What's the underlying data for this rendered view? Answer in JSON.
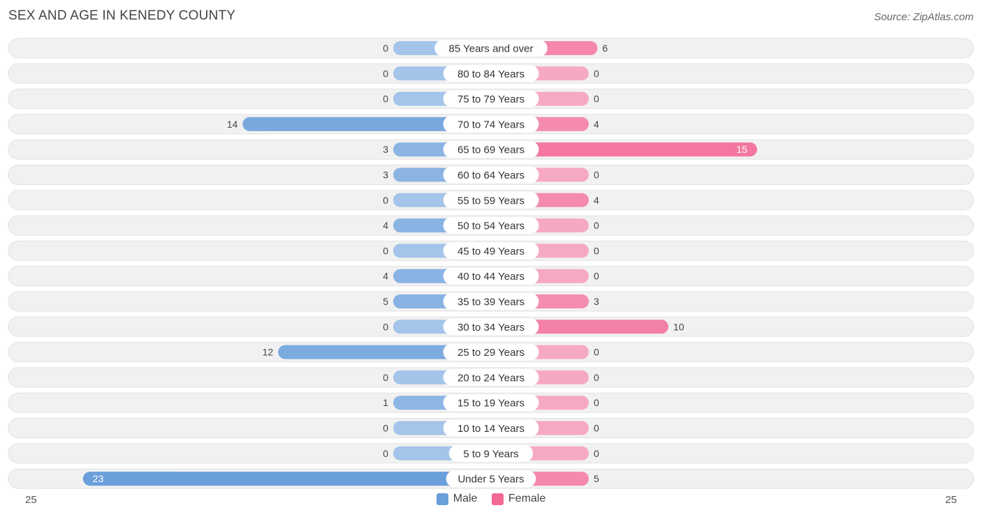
{
  "header": {
    "title": "SEX AND AGE IN KENEDY COUNTY",
    "source": "Source: ZipAtlas.com"
  },
  "legend": {
    "male_label": "Male",
    "female_label": "Female"
  },
  "axis": {
    "left_label": "25",
    "right_label": "25"
  },
  "colors": {
    "male_light": "#a4c4e9",
    "male_dark": "#6a9fdc",
    "female_light": "#f6a9c3",
    "female_dark": "#f26893",
    "row_bg": "#f1f1f1"
  },
  "chart_data": {
    "type": "bar",
    "orientation": "horizontal-diverging",
    "title": "SEX AND AGE IN KENEDY COUNTY",
    "categories": [
      "85 Years and over",
      "80 to 84 Years",
      "75 to 79 Years",
      "70 to 74 Years",
      "65 to 69 Years",
      "60 to 64 Years",
      "55 to 59 Years",
      "50 to 54 Years",
      "45 to 49 Years",
      "40 to 44 Years",
      "35 to 39 Years",
      "30 to 34 Years",
      "25 to 29 Years",
      "20 to 24 Years",
      "15 to 19 Years",
      "10 to 14 Years",
      "5 to 9 Years",
      "Under 5 Years"
    ],
    "series": [
      {
        "name": "Male",
        "values": [
          0,
          0,
          0,
          14,
          3,
          3,
          0,
          4,
          0,
          4,
          5,
          0,
          12,
          0,
          1,
          0,
          0,
          23
        ]
      },
      {
        "name": "Female",
        "values": [
          6,
          0,
          0,
          4,
          15,
          0,
          4,
          0,
          0,
          0,
          3,
          10,
          0,
          0,
          0,
          0,
          0,
          5
        ]
      }
    ],
    "xlim": [
      -25,
      25
    ],
    "legend_position": "bottom-center"
  }
}
